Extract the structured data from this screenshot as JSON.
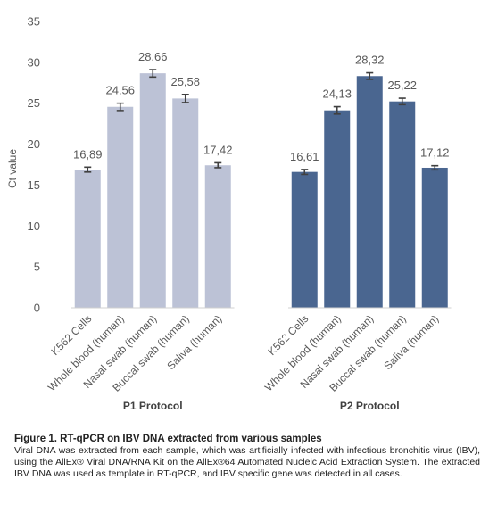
{
  "chart_data": {
    "type": "bar",
    "ylabel": "Ct value",
    "ylim": [
      0,
      35
    ],
    "yticks": [
      0,
      5,
      10,
      15,
      20,
      25,
      30,
      35
    ],
    "grid": false,
    "legend": "none",
    "groups": [
      {
        "name": "P1 Protocol",
        "color": "#bcc2d6",
        "categories": [
          "K562 Cells",
          "Whole blood (human)",
          "Nasal swab (human)",
          "Buccal swab (human)",
          "Saliva (human)"
        ],
        "values": [
          16.89,
          24.56,
          28.66,
          25.58,
          17.42
        ],
        "labels": [
          "16,89",
          "24,56",
          "28,66",
          "25,58",
          "17,42"
        ],
        "errors": [
          0.3,
          0.45,
          0.45,
          0.5,
          0.3
        ]
      },
      {
        "name": "P2 Protocol",
        "color": "#4a6690",
        "categories": [
          "K562 Cells",
          "Whole blood (human)",
          "Nasal swab (human)",
          "Buccal swab (human)",
          "Saliva (human)"
        ],
        "values": [
          16.61,
          24.13,
          28.32,
          25.22,
          17.12
        ],
        "labels": [
          "16,61",
          "24,13",
          "28,32",
          "25,22",
          "17,12"
        ],
        "errors": [
          0.3,
          0.45,
          0.4,
          0.4,
          0.25
        ]
      }
    ]
  },
  "caption": {
    "title": "Figure 1. RT-qPCR on IBV DNA extracted from various samples",
    "body": "Viral DNA was extracted from each sample, which was artificially infected with infectious bronchitis virus (IBV), using the AllEx® Viral DNA/RNA Kit on the AllEx®64 Automated Nucleic Acid Extraction System. The extracted IBV DNA was used as template in RT-qPCR, and IBV specific gene was detected in all cases."
  }
}
